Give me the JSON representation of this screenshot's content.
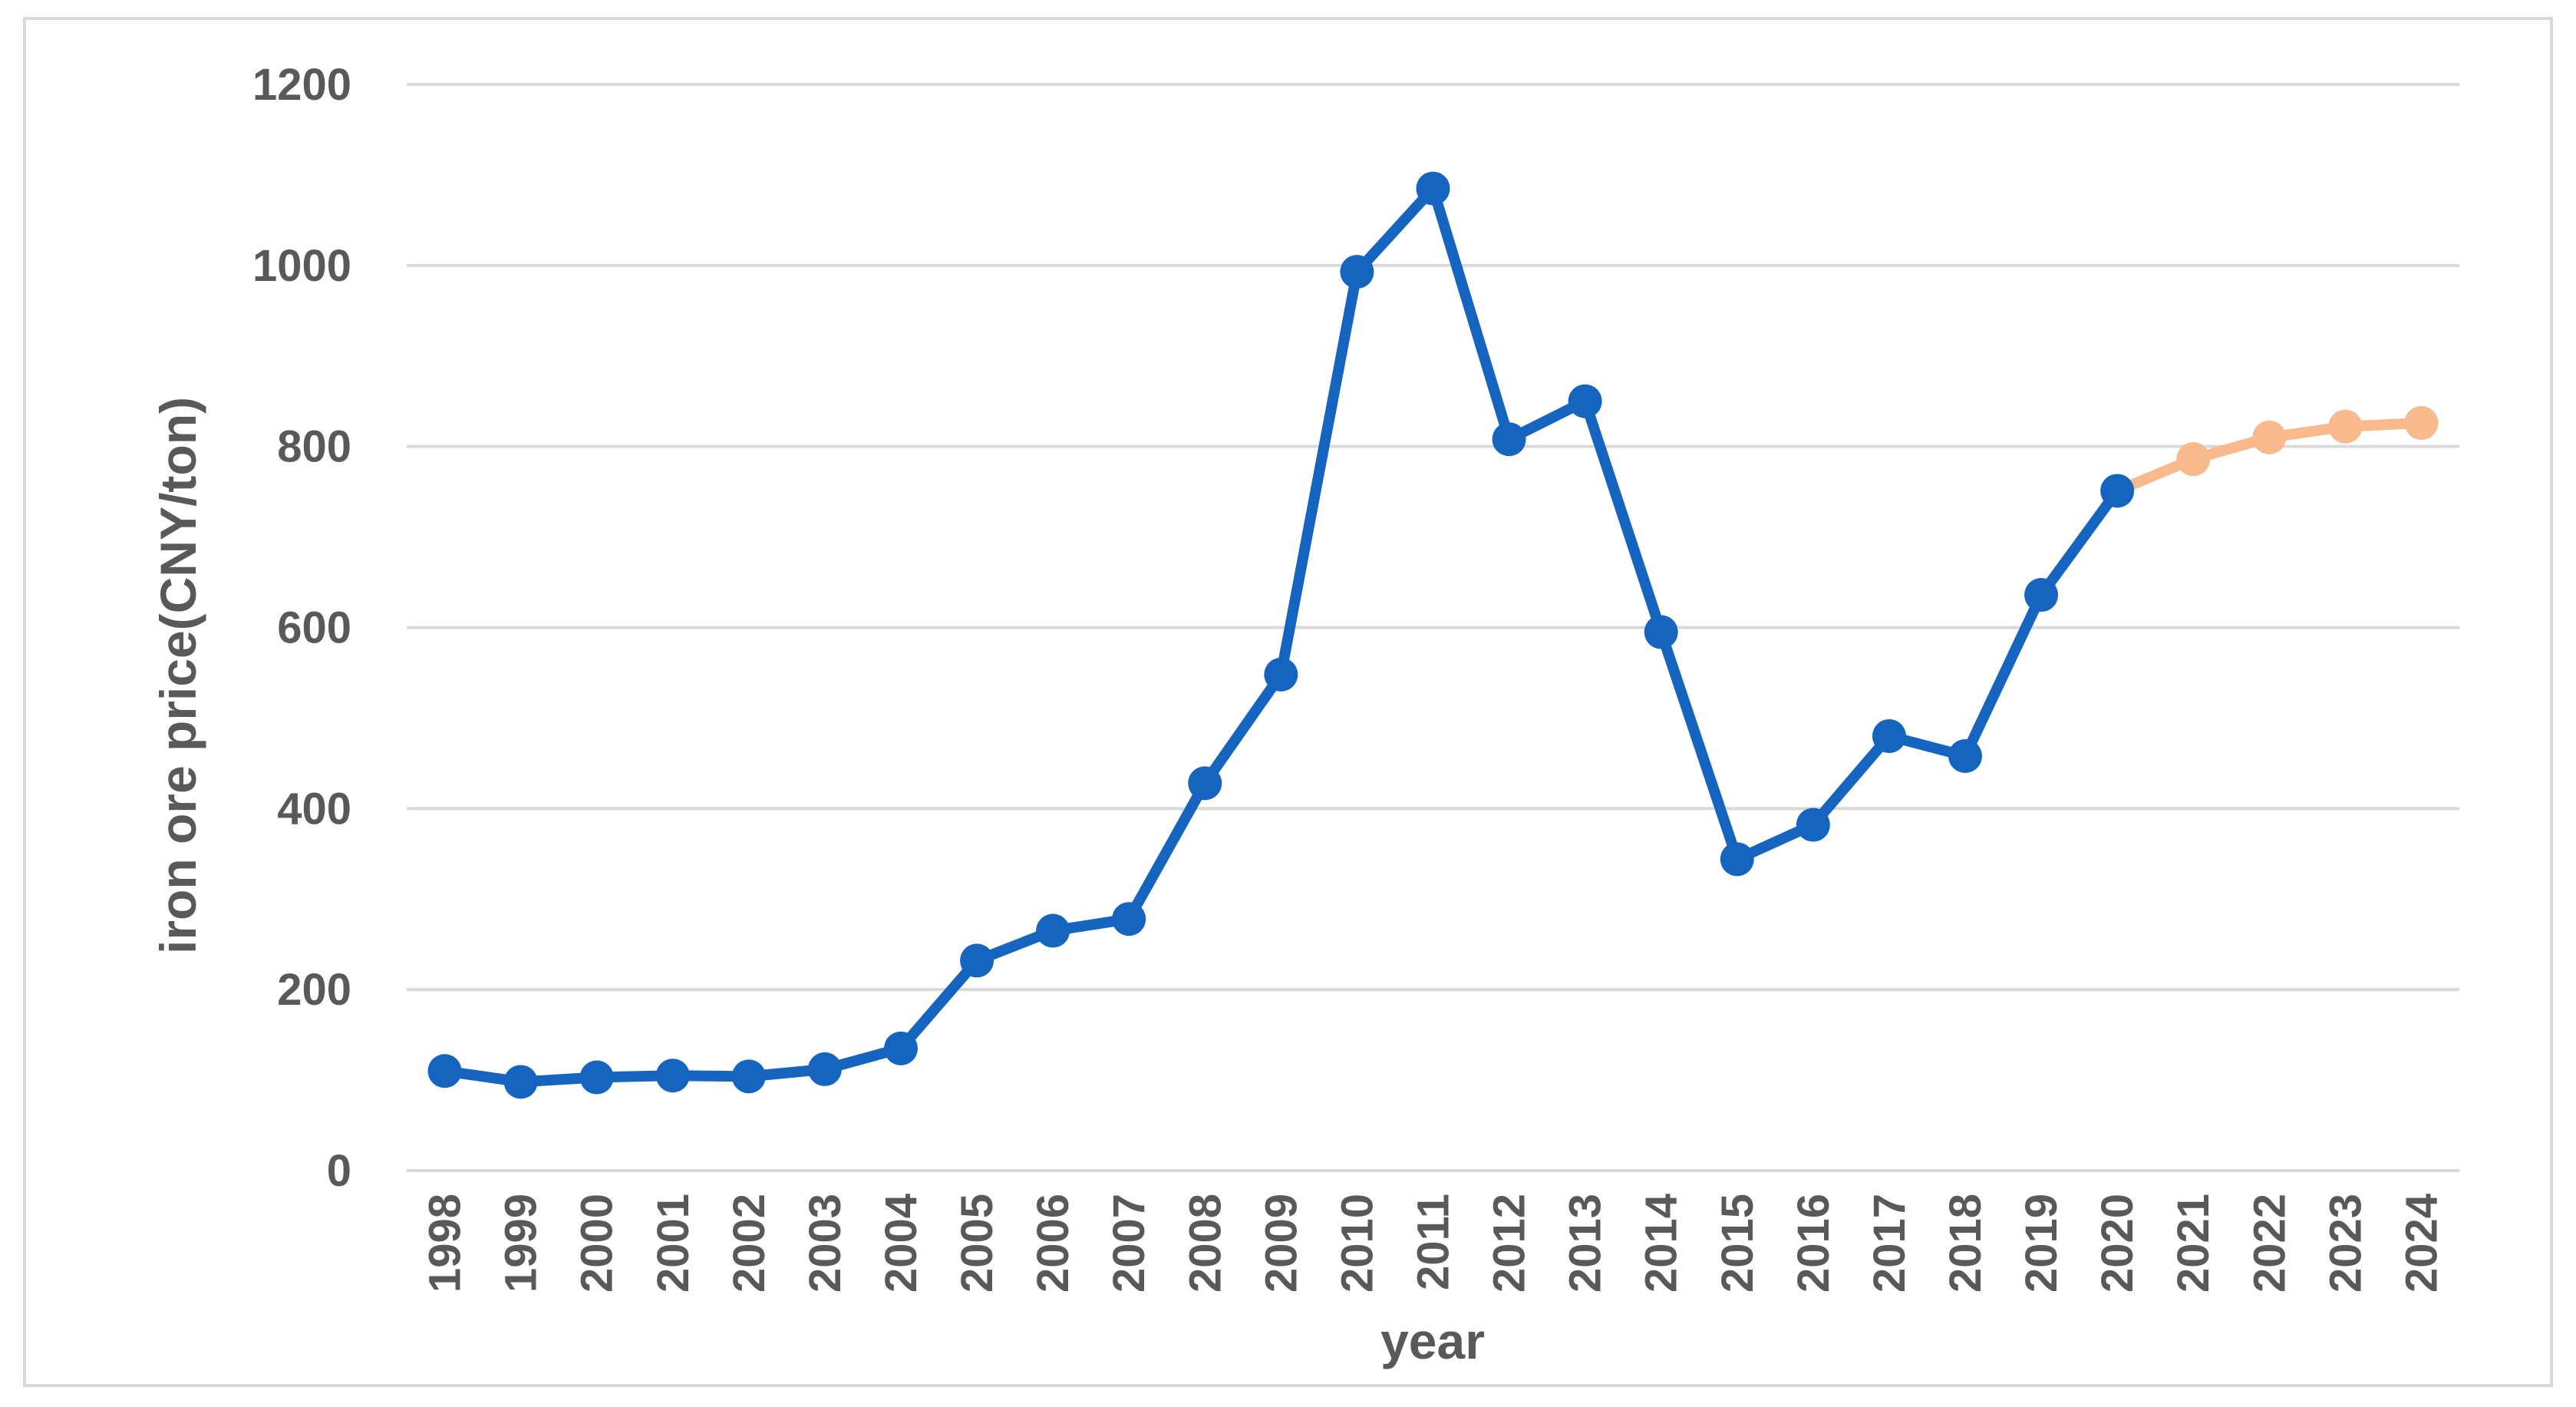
{
  "chart_data": {
    "type": "line",
    "title": "",
    "xlabel": "year",
    "ylabel": "iron ore price(CNY/ton)",
    "ylim": [
      0,
      1200
    ],
    "yticks": [
      0,
      200,
      400,
      600,
      800,
      1000,
      1200
    ],
    "grid": true,
    "legend": "none",
    "categories": [
      "1998",
      "1999",
      "2000",
      "2001",
      "2002",
      "2003",
      "2004",
      "2005",
      "2006",
      "2007",
      "2008",
      "2009",
      "2010",
      "2011",
      "2012",
      "2013",
      "2014",
      "2015",
      "2016",
      "2017",
      "2018",
      "2019",
      "2020",
      "2021",
      "2022",
      "2023",
      "2024"
    ],
    "series": [
      {
        "color": "#1565c0",
        "x": [
          "1998",
          "1999",
          "2000",
          "2001",
          "2002",
          "2003",
          "2004",
          "2005",
          "2006",
          "2007",
          "2008",
          "2009",
          "2010",
          "2011",
          "2012",
          "2013",
          "2014",
          "2015",
          "2016",
          "2017",
          "2018",
          "2019",
          "2020"
        ],
        "values": [
          110,
          98,
          103,
          105,
          104,
          112,
          135,
          232,
          265,
          278,
          428,
          548,
          993,
          1085,
          808,
          850,
          595,
          344,
          382,
          480,
          458,
          636,
          751
        ]
      },
      {
        "color": "#f8b98c",
        "x": [
          "2020",
          "2021",
          "2022",
          "2023",
          "2024"
        ],
        "values": [
          751,
          786,
          810,
          822,
          826
        ]
      }
    ]
  }
}
